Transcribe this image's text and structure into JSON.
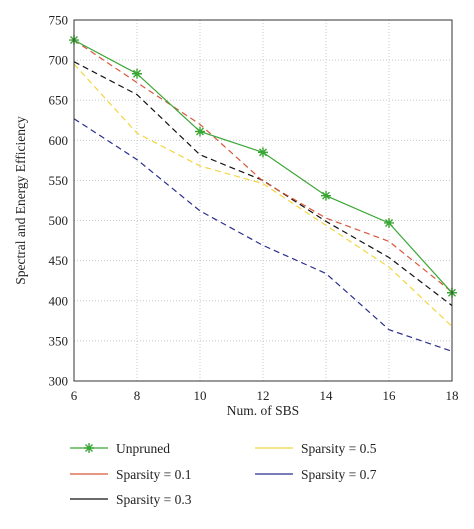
{
  "chart_data": {
    "type": "line",
    "xlabel": "Num. of SBS",
    "ylabel": "Spectral and Energy Efficiency",
    "x": [
      6,
      8,
      10,
      12,
      14,
      16,
      18
    ],
    "xlim": [
      6,
      18
    ],
    "ylim": [
      300,
      750
    ],
    "xticks": [
      "6",
      "8",
      "10",
      "12",
      "14",
      "16",
      "18"
    ],
    "yticks": [
      "300",
      "350",
      "400",
      "450",
      "500",
      "550",
      "600",
      "650",
      "700",
      "750"
    ],
    "grid": true,
    "legend_position": "bottom",
    "series": [
      {
        "name": "Unpruned",
        "color": "#3aa635",
        "dash": "solid",
        "marker": "star",
        "values": [
          725,
          683,
          611,
          585,
          531,
          497,
          410
        ]
      },
      {
        "name": "Sparsity = 0.1",
        "color": "#d9573b",
        "dash": "dashed",
        "marker": "none",
        "values": [
          725,
          672,
          620,
          549,
          503,
          474,
          411
        ]
      },
      {
        "name": "Sparsity = 0.3",
        "color": "#111111",
        "dash": "dashed",
        "marker": "none",
        "values": [
          698,
          657,
          582,
          550,
          499,
          454,
          394
        ]
      },
      {
        "name": "Sparsity = 0.5",
        "color": "#f2d640",
        "dash": "dashed",
        "marker": "none",
        "values": [
          695,
          609,
          568,
          546,
          494,
          442,
          368
        ]
      },
      {
        "name": "Sparsity = 0.7",
        "color": "#2b2f8f",
        "dash": "dashed",
        "marker": "none",
        "values": [
          627,
          576,
          512,
          469,
          434,
          364,
          337
        ]
      }
    ]
  }
}
